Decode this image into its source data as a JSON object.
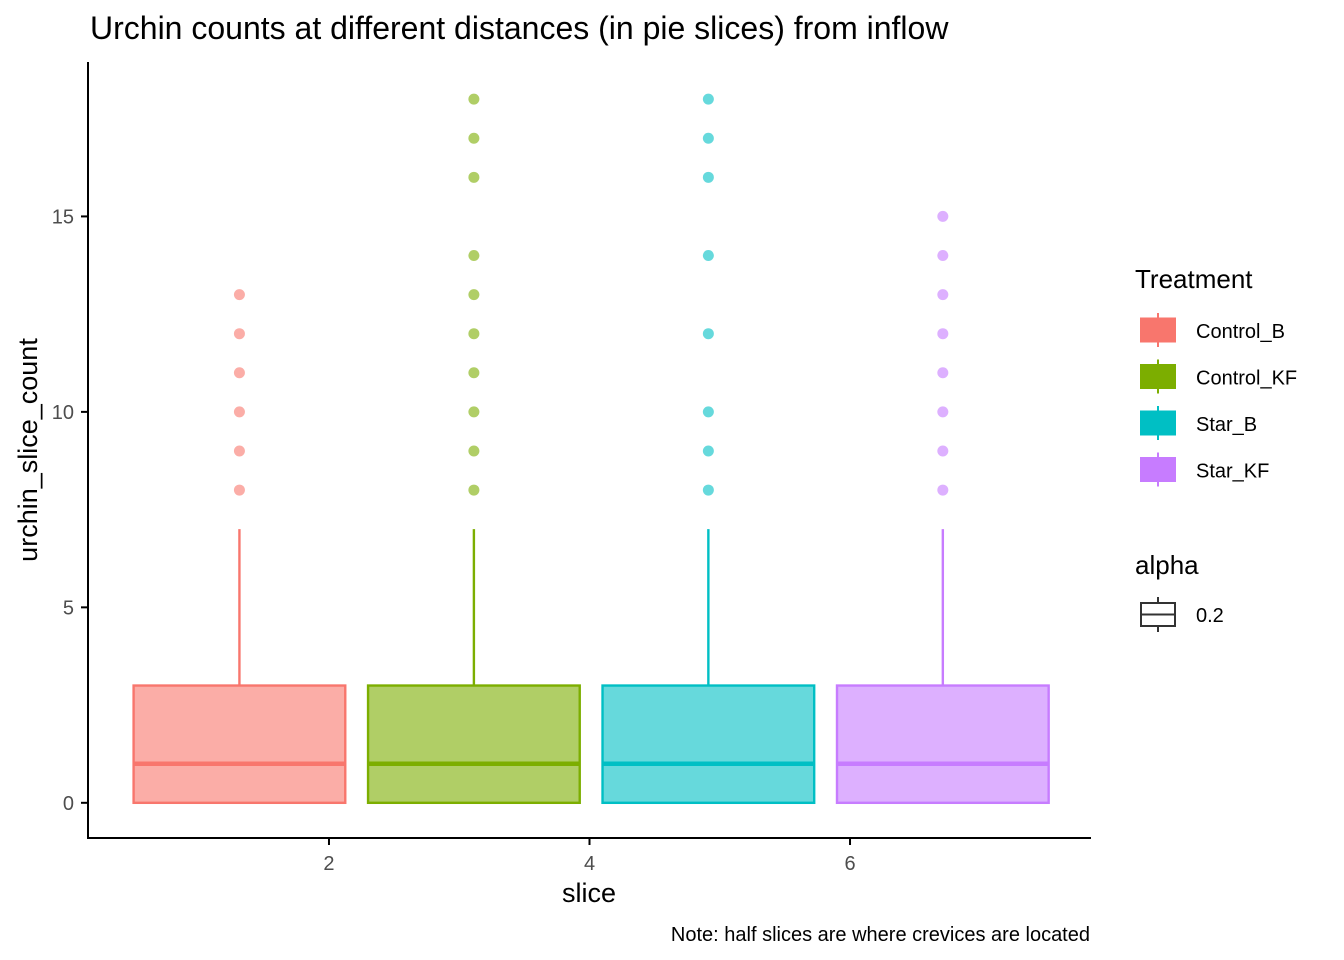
{
  "chart_data": {
    "type": "box",
    "title": "Urchin counts at different distances (in pie slices) from inflow",
    "xlabel": "slice",
    "ylabel": "urchin_slice_count",
    "caption": "Note: half slices are where crevices are located",
    "xlim": [
      0.15,
      7.85
    ],
    "ylim": [
      -0.9,
      18.95
    ],
    "x_ticks": [
      2,
      4,
      6
    ],
    "y_ticks": [
      0,
      5,
      10,
      15
    ],
    "grid": false,
    "legend_position": "right",
    "series": [
      {
        "name": "Control_B",
        "color": "#F8766D",
        "x_range": [
          0.5,
          2.125
        ],
        "x_center": 1.3125,
        "box": {
          "lower_whisker": 0,
          "q1": 0,
          "median": 1,
          "q3": 3,
          "upper_whisker": 7
        },
        "outliers": [
          8,
          9,
          10,
          11,
          12,
          13
        ]
      },
      {
        "name": "Control_KF",
        "color": "#7CAE00",
        "x_range": [
          2.3,
          3.925
        ],
        "x_center": 3.1125,
        "box": {
          "lower_whisker": 0,
          "q1": 0,
          "median": 1,
          "q3": 3,
          "upper_whisker": 7
        },
        "outliers": [
          8,
          9,
          10,
          11,
          12,
          13,
          14,
          16,
          17,
          18
        ]
      },
      {
        "name": "Star_B",
        "color": "#00BFC4",
        "x_range": [
          4.1,
          5.725
        ],
        "x_center": 4.9125,
        "box": {
          "lower_whisker": 0,
          "q1": 0,
          "median": 1,
          "q3": 3,
          "upper_whisker": 7
        },
        "outliers": [
          8,
          9,
          10,
          12,
          14,
          16,
          17,
          18
        ]
      },
      {
        "name": "Star_KF",
        "color": "#C77CFF",
        "x_range": [
          5.9,
          7.525
        ],
        "x_center": 6.7125,
        "box": {
          "lower_whisker": 0,
          "q1": 0,
          "median": 1,
          "q3": 3,
          "upper_whisker": 7
        },
        "outliers": [
          8,
          9,
          10,
          11,
          12,
          13,
          14,
          15
        ]
      }
    ],
    "legends": [
      {
        "title": "Treatment",
        "items": [
          "Control_B",
          "Control_KF",
          "Star_B",
          "Star_KF"
        ]
      },
      {
        "title": "alpha",
        "items": [
          "0.2"
        ]
      }
    ],
    "style": {
      "fill_opacity": 0.6,
      "point_opacity": 0.6,
      "axis_color": "#000000",
      "tick_label_color": "#4D4D4D"
    }
  }
}
